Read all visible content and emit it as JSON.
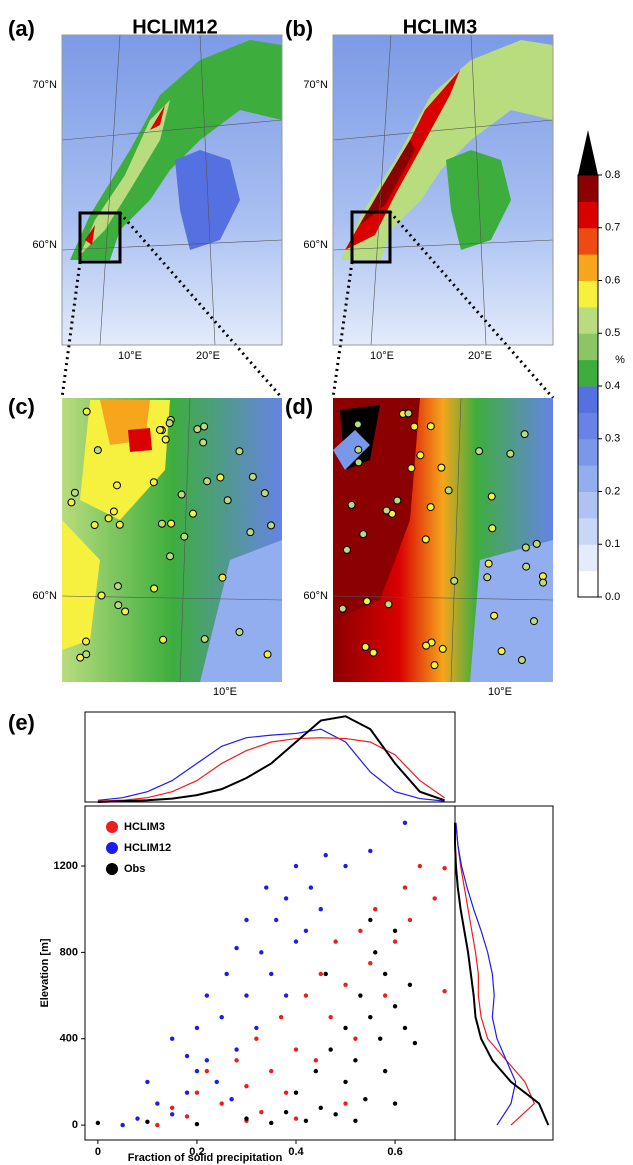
{
  "panels": {
    "a": {
      "label": "(a)",
      "title": "HCLIM12",
      "lat_labels": [
        "70°N",
        "60°N"
      ],
      "lon_labels": [
        "10°E",
        "20°E"
      ]
    },
    "b": {
      "label": "(b)",
      "title": "HCLIM3",
      "lat_labels": [
        "70°N",
        "60°N"
      ],
      "lon_labels": [
        "10°E",
        "20°E"
      ]
    },
    "c": {
      "label": "(c)",
      "lat_labels": [
        "60°N"
      ],
      "lon_labels": [
        "10°E"
      ]
    },
    "d": {
      "label": "(d)",
      "lat_labels": [
        "60°N"
      ],
      "lon_labels": [
        "10°E"
      ]
    }
  },
  "colorbar": {
    "unit": "%",
    "lim": [
      0,
      0.8
    ],
    "ticks": [
      {
        "value": 0,
        "label": "0.0"
      },
      0.1,
      0.2,
      0.3,
      0.4,
      0.5,
      0.6,
      0.7,
      0.8
    ],
    "colors": [
      "#ffffff",
      "#e4ebfb",
      "#c9d7f7",
      "#aec3f2",
      "#93aeee",
      "#7a98ea",
      "#6683e5",
      "#5570e0",
      "#3dae3d",
      "#8cc664",
      "#b9dc7e",
      "#f6f03e",
      "#f6a51d",
      "#ee4b12",
      "#d90000",
      "#8b0000"
    ],
    "extend_color": "#000000"
  },
  "chart_data": [
    {
      "type": "scatter",
      "label": "(e)",
      "xlabel": "Fraction of solid precipitation",
      "ylabel": "Elevation [m]",
      "xlim": [
        -0.026,
        0.721
      ],
      "ylim": [
        -69,
        1478
      ],
      "xticks": [
        0,
        0.2,
        0.4,
        0.6
      ],
      "yticks": [
        0,
        400,
        800,
        1200
      ],
      "legend": "upper left",
      "series": [
        {
          "name": "HCLIM3",
          "color": "#ee1c1c",
          "x": [
            0.12,
            0.15,
            0.18,
            0.2,
            0.22,
            0.25,
            0.28,
            0.3,
            0.32,
            0.33,
            0.35,
            0.37,
            0.38,
            0.4,
            0.42,
            0.44,
            0.45,
            0.47,
            0.48,
            0.5,
            0.52,
            0.53,
            0.55,
            0.56,
            0.58,
            0.6,
            0.62,
            0.63,
            0.65,
            0.68,
            0.7,
            0.7,
            0.3,
            0.5,
            0.4
          ],
          "values": [
            0,
            80,
            40,
            150,
            250,
            100,
            300,
            180,
            400,
            60,
            250,
            500,
            150,
            350,
            600,
            300,
            700,
            500,
            850,
            650,
            400,
            900,
            750,
            1000,
            600,
            850,
            1100,
            950,
            1200,
            1050,
            1190,
            620,
            20,
            100,
            30
          ]
        },
        {
          "name": "HCLIM12",
          "color": "#1c1cee",
          "x": [
            0.05,
            0.08,
            0.1,
            0.12,
            0.15,
            0.15,
            0.18,
            0.2,
            0.2,
            0.22,
            0.22,
            0.24,
            0.25,
            0.26,
            0.28,
            0.28,
            0.3,
            0.3,
            0.32,
            0.33,
            0.34,
            0.35,
            0.36,
            0.38,
            0.38,
            0.4,
            0.4,
            0.42,
            0.43,
            0.45,
            0.46,
            0.5,
            0.55,
            0.62,
            0.18,
            0.27
          ],
          "values": [
            0,
            30,
            200,
            100,
            50,
            400,
            150,
            250,
            450,
            300,
            600,
            200,
            500,
            700,
            350,
            820,
            600,
            950,
            450,
            800,
            1100,
            700,
            950,
            1050,
            600,
            850,
            1200,
            900,
            1100,
            1000,
            1250,
            1200,
            1270,
            1400,
            320,
            120
          ]
        },
        {
          "name": "Obs",
          "color": "#000000",
          "x": [
            0.0,
            0.1,
            0.2,
            0.3,
            0.38,
            0.4,
            0.42,
            0.44,
            0.45,
            0.47,
            0.48,
            0.5,
            0.5,
            0.52,
            0.53,
            0.54,
            0.55,
            0.56,
            0.57,
            0.58,
            0.58,
            0.6,
            0.6,
            0.62,
            0.63,
            0.64,
            0.55,
            0.52,
            0.46,
            0.35,
            0.6
          ],
          "values": [
            10,
            15,
            5,
            30,
            60,
            150,
            20,
            250,
            80,
            350,
            50,
            200,
            450,
            300,
            600,
            120,
            500,
            800,
            400,
            250,
            700,
            550,
            900,
            450,
            650,
            380,
            950,
            20,
            700,
            10,
            100
          ]
        }
      ]
    },
    {
      "type": "line",
      "x": [
        0,
        0.05,
        0.1,
        0.15,
        0.2,
        0.25,
        0.3,
        0.35,
        0.4,
        0.45,
        0.5,
        0.55,
        0.6,
        0.65,
        0.7
      ],
      "xlim": [
        -0.026,
        0.721
      ],
      "ylim": [
        0,
        1.05
      ],
      "series": [
        {
          "color": "#1c1cee",
          "values": [
            0.02,
            0.05,
            0.12,
            0.25,
            0.45,
            0.65,
            0.75,
            0.78,
            0.8,
            0.85,
            0.7,
            0.35,
            0.12,
            0.04,
            0.01
          ]
        },
        {
          "color": "#ee1c1c",
          "values": [
            0.01,
            0.02,
            0.05,
            0.12,
            0.25,
            0.45,
            0.6,
            0.7,
            0.74,
            0.75,
            0.74,
            0.7,
            0.55,
            0.25,
            0.05
          ]
        },
        {
          "color": "#000000",
          "values": [
            0,
            0.01,
            0.02,
            0.04,
            0.08,
            0.15,
            0.28,
            0.45,
            0.7,
            0.95,
            1.0,
            0.85,
            0.45,
            0.12,
            0.02
          ]
        }
      ]
    },
    {
      "type": "line",
      "orientation": "vertical",
      "y": [
        0,
        100,
        200,
        300,
        400,
        500,
        600,
        700,
        800,
        900,
        1000,
        1100,
        1200,
        1300,
        1400
      ],
      "ylim": [
        -69,
        1478
      ],
      "xlim": [
        0,
        1.05
      ],
      "series": [
        {
          "color": "#ee1c1c",
          "values": [
            0.6,
            0.85,
            0.75,
            0.55,
            0.35,
            0.28,
            0.25,
            0.25,
            0.22,
            0.18,
            0.14,
            0.1,
            0.06,
            0.03,
            0.01
          ]
        },
        {
          "color": "#1c1cee",
          "values": [
            0.45,
            0.6,
            0.65,
            0.55,
            0.45,
            0.4,
            0.42,
            0.4,
            0.35,
            0.28,
            0.2,
            0.13,
            0.07,
            0.03,
            0.01
          ]
        },
        {
          "color": "#000000",
          "values": [
            1.0,
            0.9,
            0.6,
            0.4,
            0.28,
            0.22,
            0.2,
            0.17,
            0.14,
            0.1,
            0.06,
            0.03,
            0.01,
            0,
            0
          ]
        }
      ]
    }
  ]
}
